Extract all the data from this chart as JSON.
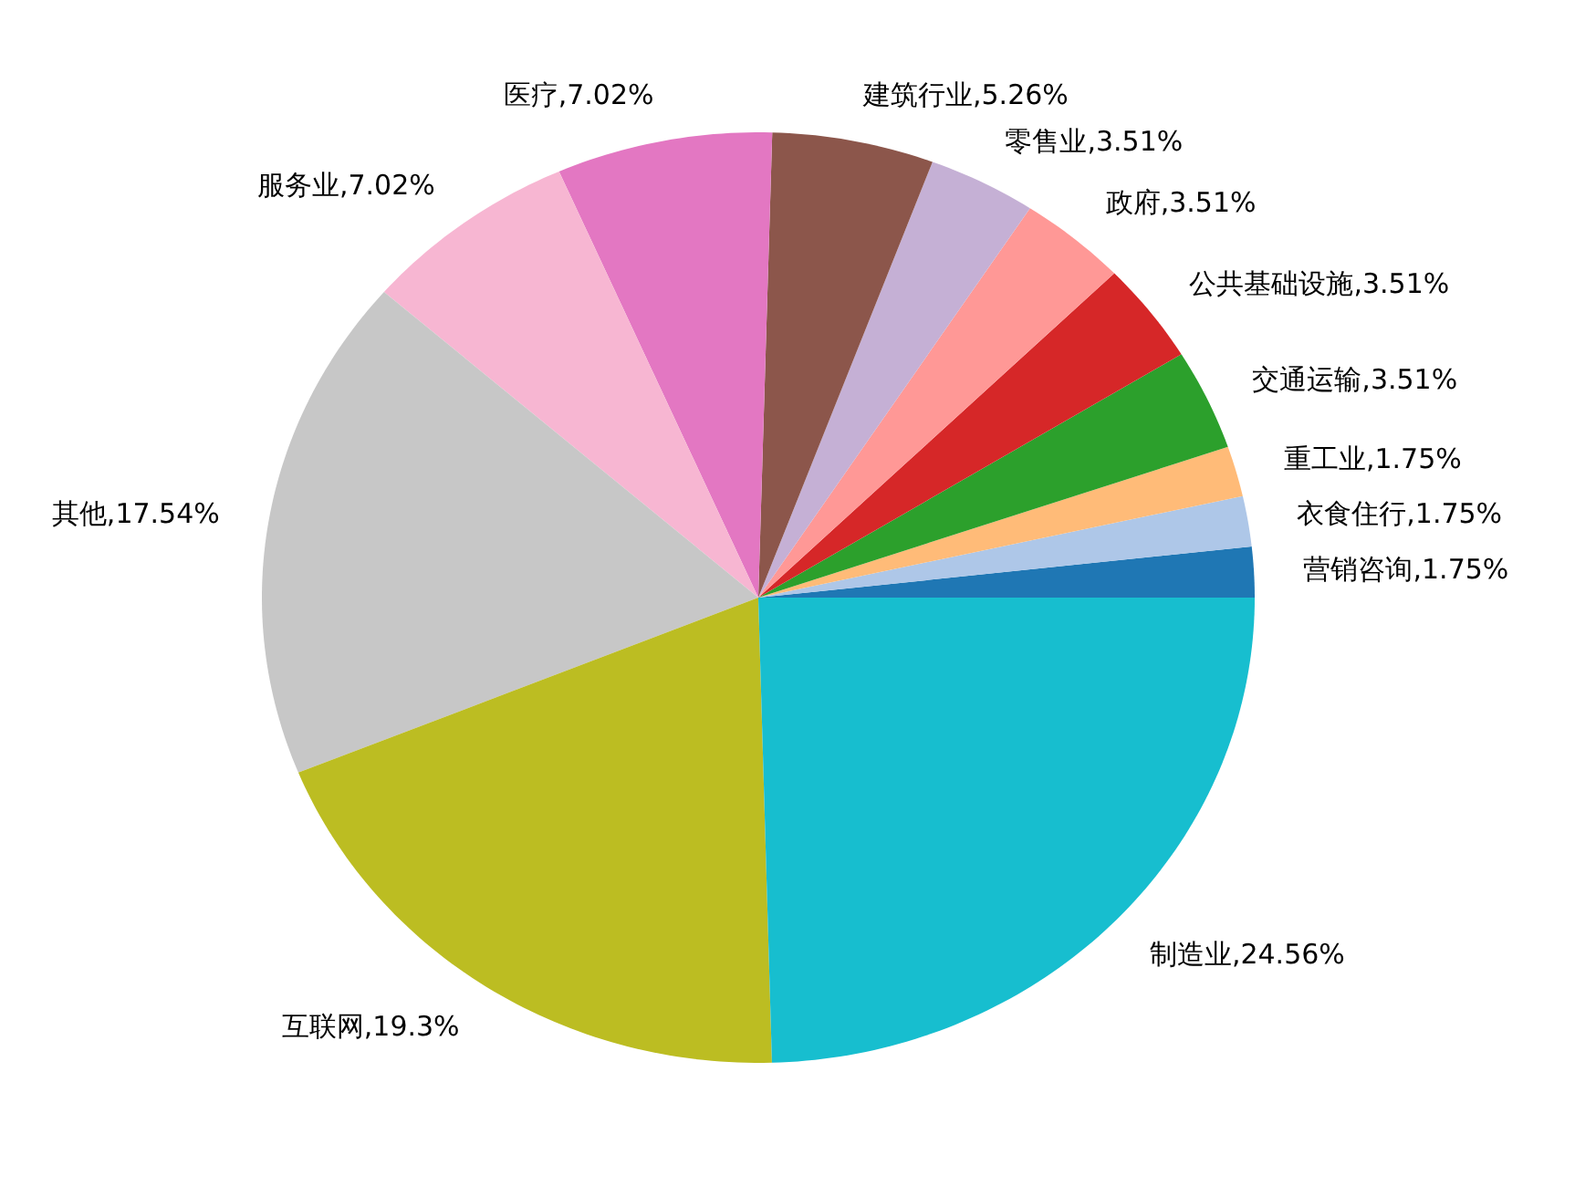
{
  "chart_data": {
    "type": "pie",
    "categories": [
      "营销咨询",
      "衣食住行",
      "重工业",
      "交通运输",
      "公共基础设施",
      "政府",
      "零售业",
      "建筑行业",
      "医疗",
      "服务业",
      "其他",
      "互联网",
      "制造业"
    ],
    "values": [
      1.75,
      1.75,
      1.75,
      3.51,
      3.51,
      3.51,
      3.51,
      5.26,
      7.02,
      7.02,
      17.54,
      19.3,
      24.56
    ],
    "colors": [
      "#1f77b4",
      "#aec7e8",
      "#ffbb78",
      "#2ca02c",
      "#d62728",
      "#ff9896",
      "#c5b0d5",
      "#8c564b",
      "#e377c2",
      "#f7b6d2",
      "#c7c7c7",
      "#bcbd22",
      "#17becf"
    ],
    "value_labels": [
      "1.75%",
      "1.75%",
      "1.75%",
      "3.51%",
      "3.51%",
      "3.51%",
      "3.51%",
      "5.26%",
      "7.02%",
      "7.02%",
      "17.54%",
      "19.3%",
      "24.56%"
    ]
  }
}
